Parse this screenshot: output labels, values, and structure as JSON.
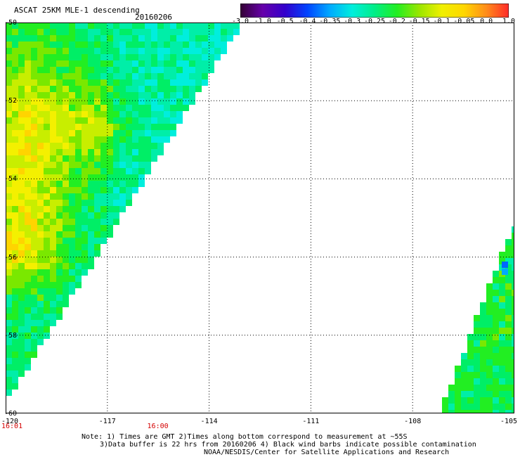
{
  "header": {
    "title": "ASCAT 25KM MLE-1 descending",
    "date": "20160206"
  },
  "colorbar": {
    "labels": [
      "-3.0",
      "-1.0",
      "-0.5",
      "-0.4",
      "-0.35",
      "-0.3",
      "-0.25",
      "-0.2",
      "-0.15",
      "-0.1",
      "-0.05",
      "0.0",
      "1.0"
    ],
    "colors": [
      "#ff2a2a",
      "#ff8c1a",
      "#ffd700",
      "#f0f000",
      "#9ae600",
      "#22ee22",
      "#00ee88",
      "#00eedd",
      "#00aaff",
      "#0044ff",
      "#3300cc",
      "#6600aa",
      "#330033"
    ]
  },
  "map": {
    "lat_labels": [
      "-50",
      "-52",
      "-54",
      "-56",
      "-58",
      "-60"
    ],
    "lon_labels": [
      "-120",
      "-117",
      "-114",
      "-111",
      "-108",
      "-105"
    ],
    "lat_range": [
      -60,
      -50
    ],
    "lon_range": [
      -120,
      -105
    ],
    "time_labels": [
      {
        "text": "16:01",
        "lon": -120
      },
      {
        "text": "16:00",
        "lon": -115.7
      }
    ]
  },
  "notes": {
    "line1": "Note: 1) Times are GMT 2)Times along bottom correspond to measurement at ~55S",
    "line2": "3)Data buffer is 22 hrs from 20160206 4) Black wind barbs indicate possible contamination",
    "line3": "NOAA/NESDIS/Center for Satellite Applications and Research"
  }
}
